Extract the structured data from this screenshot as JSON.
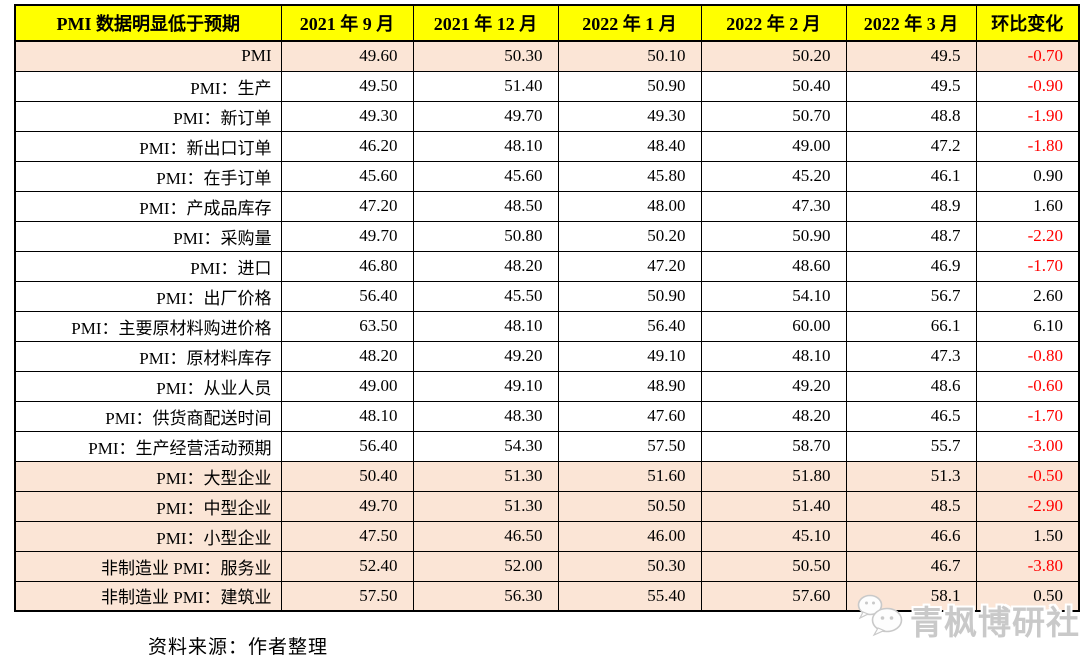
{
  "chart_data": {
    "type": "table",
    "title_cell": "PMI 数据明显低于预期",
    "columns": [
      "2021 年 9 月",
      "2021 年 12 月",
      "2022 年 1 月",
      "2022 年 2 月",
      "2022 年 3 月",
      "环比变化"
    ],
    "rows": [
      {
        "label": "PMI",
        "values": [
          "49.60",
          "50.30",
          "50.10",
          "50.20",
          "49.5",
          "-0.70"
        ],
        "highlighted": true
      },
      {
        "label": "PMI：生产",
        "values": [
          "49.50",
          "51.40",
          "50.90",
          "50.40",
          "49.5",
          "-0.90"
        ],
        "highlighted": false
      },
      {
        "label": "PMI：新订单",
        "values": [
          "49.30",
          "49.70",
          "49.30",
          "50.70",
          "48.8",
          "-1.90"
        ],
        "highlighted": false
      },
      {
        "label": "PMI：新出口订单",
        "values": [
          "46.20",
          "48.10",
          "48.40",
          "49.00",
          "47.2",
          "-1.80"
        ],
        "highlighted": false
      },
      {
        "label": "PMI：在手订单",
        "values": [
          "45.60",
          "45.60",
          "45.80",
          "45.20",
          "46.1",
          "0.90"
        ],
        "highlighted": false
      },
      {
        "label": "PMI：产成品库存",
        "values": [
          "47.20",
          "48.50",
          "48.00",
          "47.30",
          "48.9",
          "1.60"
        ],
        "highlighted": false
      },
      {
        "label": "PMI：采购量",
        "values": [
          "49.70",
          "50.80",
          "50.20",
          "50.90",
          "48.7",
          "-2.20"
        ],
        "highlighted": false
      },
      {
        "label": "PMI：进口",
        "values": [
          "46.80",
          "48.20",
          "47.20",
          "48.60",
          "46.9",
          "-1.70"
        ],
        "highlighted": false
      },
      {
        "label": "PMI：出厂价格",
        "values": [
          "56.40",
          "45.50",
          "50.90",
          "54.10",
          "56.7",
          "2.60"
        ],
        "highlighted": false
      },
      {
        "label": "PMI：主要原材料购进价格",
        "values": [
          "63.50",
          "48.10",
          "56.40",
          "60.00",
          "66.1",
          "6.10"
        ],
        "highlighted": false
      },
      {
        "label": "PMI：原材料库存",
        "values": [
          "48.20",
          "49.20",
          "49.10",
          "48.10",
          "47.3",
          "-0.80"
        ],
        "highlighted": false
      },
      {
        "label": "PMI：从业人员",
        "values": [
          "49.00",
          "49.10",
          "48.90",
          "49.20",
          "48.6",
          "-0.60"
        ],
        "highlighted": false
      },
      {
        "label": "PMI：供货商配送时间",
        "values": [
          "48.10",
          "48.30",
          "47.60",
          "48.20",
          "46.5",
          "-1.70"
        ],
        "highlighted": false
      },
      {
        "label": "PMI：生产经营活动预期",
        "values": [
          "56.40",
          "54.30",
          "57.50",
          "58.70",
          "55.7",
          "-3.00"
        ],
        "highlighted": false
      },
      {
        "label": "PMI：大型企业",
        "values": [
          "50.40",
          "51.30",
          "51.60",
          "51.80",
          "51.3",
          "-0.50"
        ],
        "highlighted": true
      },
      {
        "label": "PMI：中型企业",
        "values": [
          "49.70",
          "51.30",
          "50.50",
          "51.40",
          "48.5",
          "-2.90"
        ],
        "highlighted": true
      },
      {
        "label": "PMI：小型企业",
        "values": [
          "47.50",
          "46.50",
          "46.00",
          "45.10",
          "46.6",
          "1.50"
        ],
        "highlighted": true
      },
      {
        "label": "非制造业 PMI：服务业",
        "values": [
          "52.40",
          "52.00",
          "50.30",
          "50.50",
          "46.7",
          "-3.80"
        ],
        "highlighted": true
      },
      {
        "label": "非制造业 PMI：建筑业",
        "values": [
          "57.50",
          "56.30",
          "55.40",
          "57.60",
          "58.1",
          "0.50"
        ],
        "highlighted": true
      }
    ],
    "layout": {
      "header_bg": "#FFFF00",
      "highlight_bg": "#FBE5D6",
      "negative_color": "#FF0000",
      "text_color": "#000000",
      "grid": "on"
    }
  },
  "footer": {
    "source_label": "资料来源：作者整理"
  },
  "watermark": {
    "icon": "wechat-icon",
    "text": "青枫博研社"
  }
}
